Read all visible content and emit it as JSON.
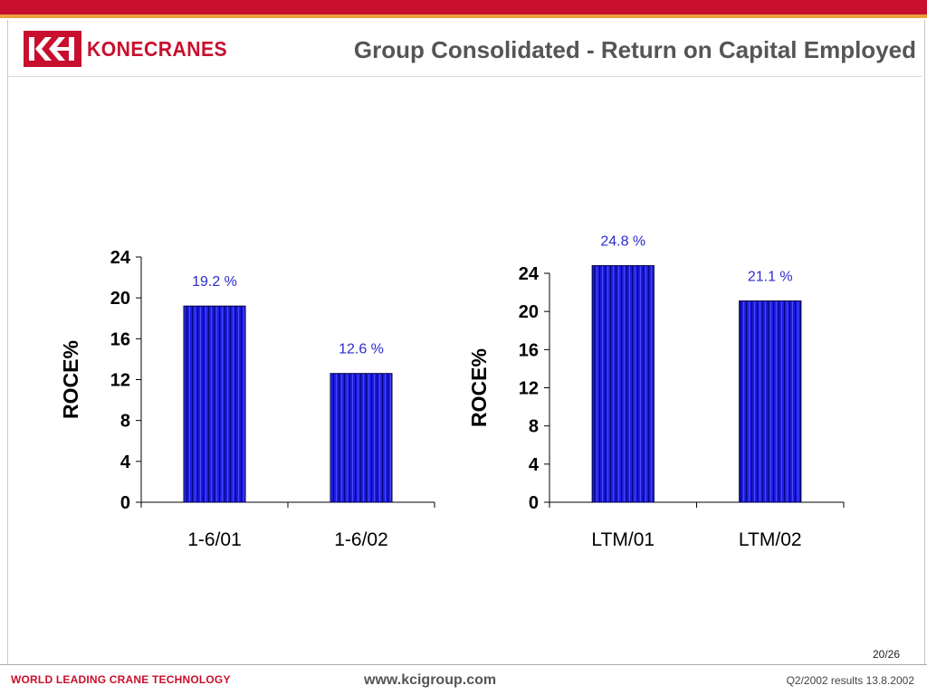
{
  "header": {
    "logo_text": "KONECRANES",
    "title": "Group Consolidated -  Return on Capital Employed"
  },
  "colors": {
    "brand_red": "#c8102e",
    "bar_fill": "#1c1cdc",
    "value_label": "#2b2bcf"
  },
  "chart_data": [
    {
      "type": "bar",
      "categories": [
        "1-6/01",
        "1-6/02"
      ],
      "values": [
        19.2,
        12.6
      ],
      "data_labels": [
        "19.2 %",
        "12.6 %"
      ],
      "title": "",
      "xlabel": "",
      "ylabel": "ROCE%",
      "ylim": [
        0,
        24
      ],
      "yticks": [
        0,
        4,
        8,
        12,
        16,
        20,
        24
      ],
      "grid": false
    },
    {
      "type": "bar",
      "categories": [
        "LTM/01",
        "LTM/02"
      ],
      "values": [
        24.8,
        21.1
      ],
      "data_labels": [
        "24.8 %",
        "21.1 %"
      ],
      "title": "",
      "xlabel": "",
      "ylabel": "ROCE%",
      "ylim": [
        0,
        24
      ],
      "yticks": [
        0,
        4,
        8,
        12,
        16,
        20,
        24
      ],
      "grid": false
    }
  ],
  "footer": {
    "page_number": "20/26",
    "tagline": "WORLD LEADING CRANE TECHNOLOGY",
    "website": "www.kcigroup.com",
    "results": "Q2/2002 results 13.8.2002"
  }
}
